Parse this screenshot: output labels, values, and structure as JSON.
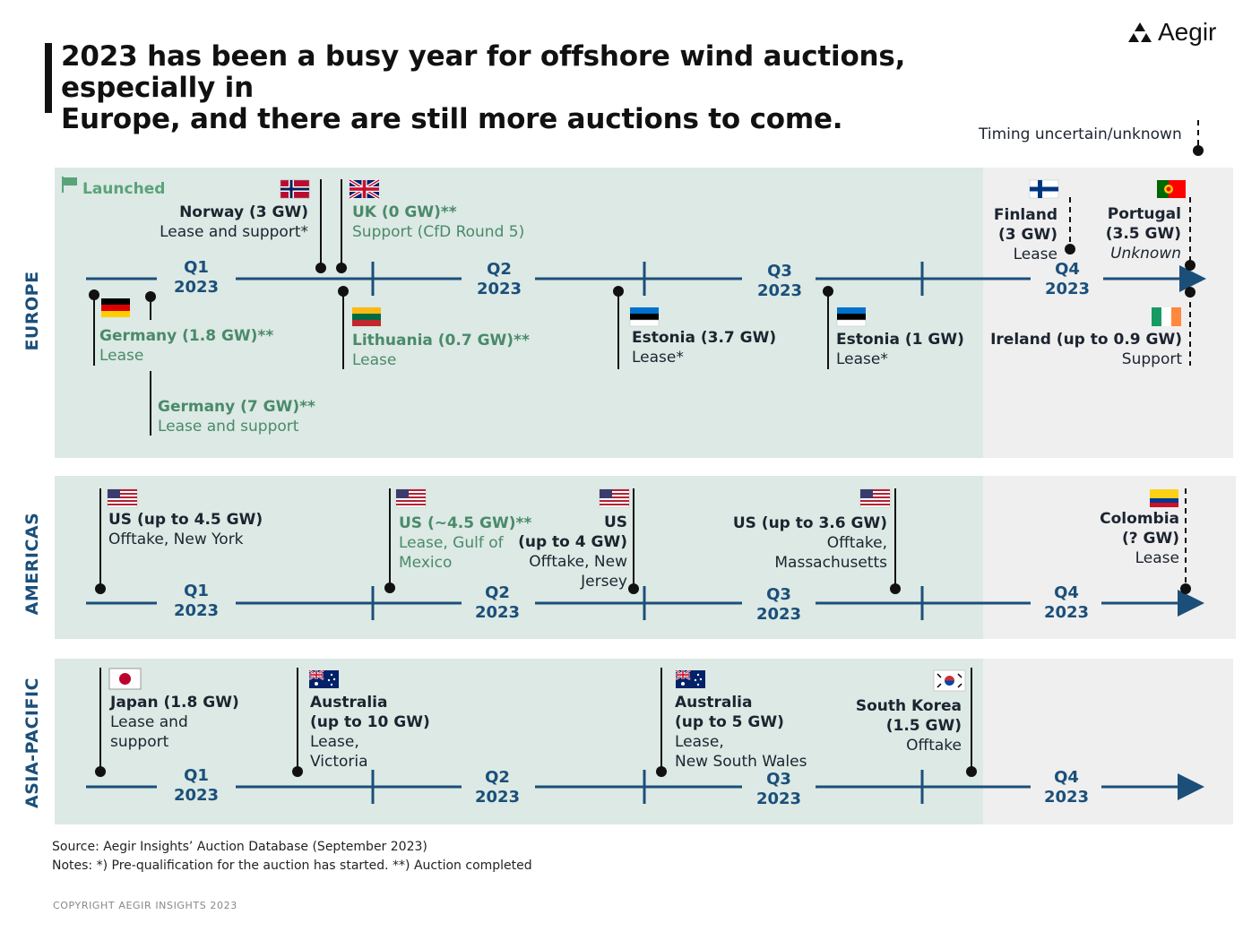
{
  "header": {
    "title_line1": "2023 has been a busy year for offshore wind auctions, especially in",
    "title_line2": "Europe, and there are still more auctions to come.",
    "logo_text": "Aegir"
  },
  "legend": {
    "uncertain": "Timing uncertain/unknown",
    "launched": "Launched"
  },
  "quarters": [
    {
      "q": "Q1",
      "y": "2023"
    },
    {
      "q": "Q2",
      "y": "2023"
    },
    {
      "q": "Q3",
      "y": "2023"
    },
    {
      "q": "Q4",
      "y": "2023"
    }
  ],
  "regions": {
    "europe": "EUROPE",
    "americas": "AMERICAS",
    "apac": "ASIA-PACIFIC"
  },
  "europe": {
    "norway": {
      "name": "Norway (3 GW)",
      "type": "Lease and support*"
    },
    "uk": {
      "name": "UK (0 GW)**",
      "type": "Support (CfD Round 5)"
    },
    "germany1": {
      "name": "Germany (1.8 GW)**",
      "type": "Lease"
    },
    "germany2": {
      "name": "Germany (7 GW)**",
      "type": "Lease and support"
    },
    "lithuania": {
      "name": "Lithuania (0.7 GW)**",
      "type": "Lease"
    },
    "estonia1": {
      "name": "Estonia (3.7 GW)",
      "type": "Lease*"
    },
    "estonia2": {
      "name": "Estonia (1 GW)",
      "type": "Lease*"
    },
    "finland": {
      "name1": "Finland",
      "name2": "(3 GW)",
      "type": "Lease"
    },
    "portugal": {
      "name1": "Portugal",
      "name2": "(3.5 GW)",
      "type": "Unknown"
    },
    "ireland": {
      "name": "Ireland (up to 0.9 GW)",
      "type": "Support"
    }
  },
  "americas": {
    "us1": {
      "name": "US (up to 4.5 GW)",
      "type": "Offtake, New York"
    },
    "us2": {
      "name": "US (~4.5 GW)**",
      "type1": "Lease, Gulf of",
      "type2": "Mexico"
    },
    "us3": {
      "name1": "US",
      "name2": "(up to 4 GW)",
      "type1": "Offtake, New",
      "type2": "Jersey"
    },
    "us4": {
      "name": "US (up to 3.6 GW)",
      "type1": "Offtake,",
      "type2": "Massachusetts"
    },
    "colombia": {
      "name1": "Colombia",
      "name2": "(? GW)",
      "type": "Lease"
    }
  },
  "apac": {
    "japan": {
      "name": "Japan (1.8 GW)",
      "type1": "Lease and",
      "type2": "support"
    },
    "aus1": {
      "name1": "Australia",
      "name2": "(up to 10 GW)",
      "type1": "Lease,",
      "type2": "Victoria"
    },
    "aus2": {
      "name1": "Australia",
      "name2": "(up to 5 GW)",
      "type1": "Lease,",
      "type2": "New South Wales"
    },
    "korea": {
      "name1": "South Korea",
      "name2": "(1.5 GW)",
      "type": "Offtake"
    }
  },
  "footer": {
    "source": "Source: Aegir Insights’ Auction Database (September 2023)",
    "notes": "Notes: *) Pre-qualification for the auction has started. **) Auction completed",
    "copyright": "COPYRIGHT  AEGIR INSIGHTS 2023"
  },
  "colors": {
    "axis": "#1b4f7a",
    "band": "#dce9e4",
    "band_future": "#efefef",
    "launched": "#5aa37a"
  }
}
